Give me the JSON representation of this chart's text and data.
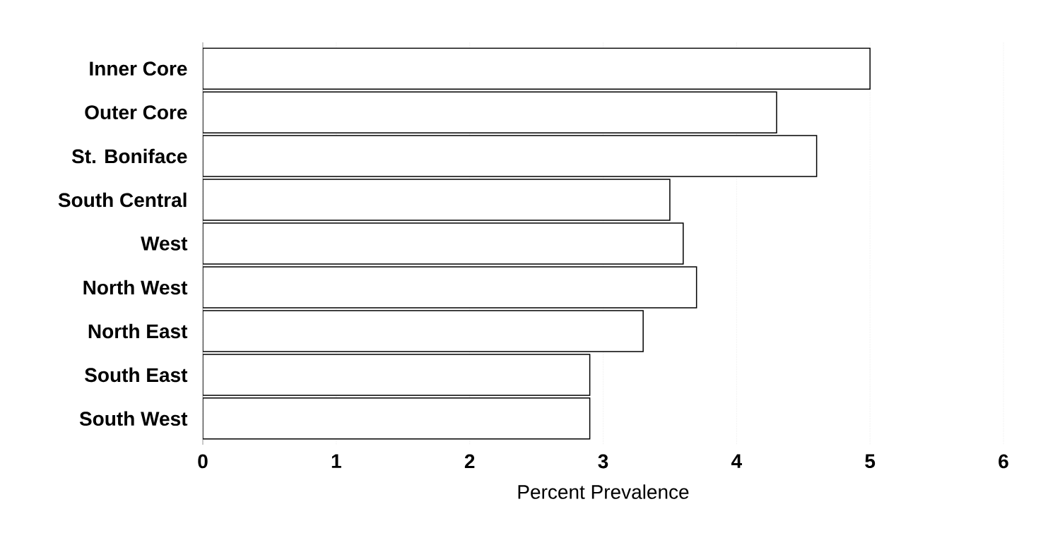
{
  "chart_data": {
    "type": "bar",
    "orientation": "horizontal",
    "categories": [
      "Inner Core",
      "Outer Core",
      "St. Boniface",
      "South Central",
      "West",
      "North West",
      "North East",
      "South East",
      "South West"
    ],
    "values": [
      5.0,
      4.3,
      4.6,
      3.5,
      3.6,
      3.7,
      3.3,
      2.9,
      2.9
    ],
    "color": "#ffffff",
    "xlabel": "Percent Prevalence",
    "xlim": [
      0,
      6
    ],
    "xticks": [
      0,
      1,
      2,
      3,
      4,
      5,
      6
    ],
    "grid": "x"
  }
}
